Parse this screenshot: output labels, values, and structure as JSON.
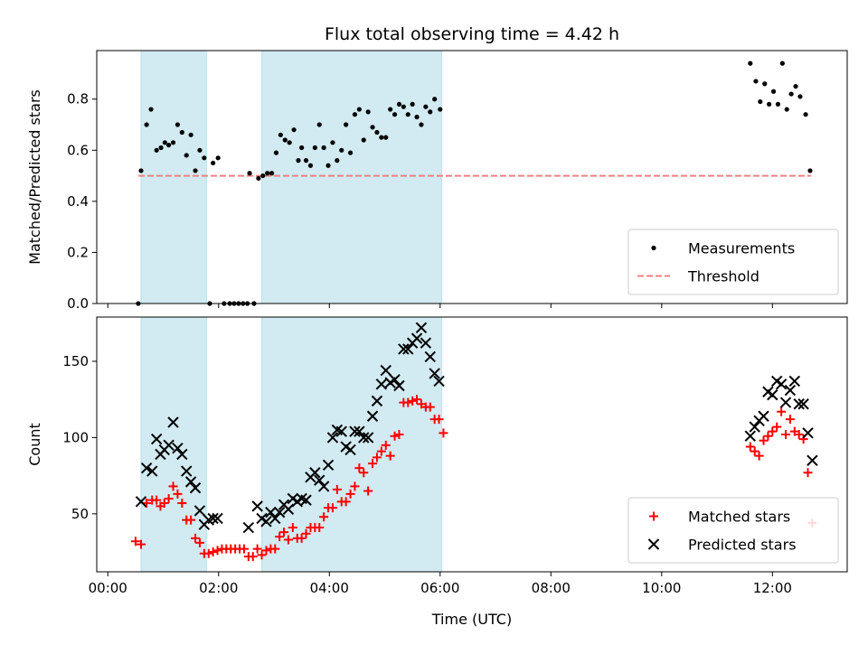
{
  "chart_data": [
    {
      "type": "scatter",
      "title": "Flux total observing time = 4.42 h",
      "xlabel": "",
      "ylabel": "Matched/Predicted stars",
      "xlim": [
        -0.2,
        13.35
      ],
      "ylim": [
        0,
        0.99
      ],
      "yticks": [
        0.0,
        0.2,
        0.4,
        0.6,
        0.8
      ],
      "ytick_labels": [
        "0.0",
        "0.2",
        "0.4",
        "0.6",
        "0.8"
      ],
      "shaded_spans": [
        [
          0.6,
          1.78
        ],
        [
          2.78,
          6.03
        ]
      ],
      "shade_color": "#add8e6",
      "legend": "bottom-right",
      "threshold": {
        "name": "Threshold",
        "y": 0.5,
        "x": [
          0.55,
          12.7
        ],
        "color": "#f08080",
        "style": "dashed"
      },
      "series": [
        {
          "name": "Measurements",
          "marker": "dot",
          "color": "#000000",
          "points": [
            [
              0.55,
              0.0
            ],
            [
              0.6,
              0.52
            ],
            [
              0.7,
              0.7
            ],
            [
              0.78,
              0.76
            ],
            [
              0.88,
              0.6
            ],
            [
              0.96,
              0.61
            ],
            [
              1.03,
              0.63
            ],
            [
              1.1,
              0.62
            ],
            [
              1.18,
              0.63
            ],
            [
              1.26,
              0.7
            ],
            [
              1.34,
              0.67
            ],
            [
              1.42,
              0.58
            ],
            [
              1.5,
              0.66
            ],
            [
              1.58,
              0.52
            ],
            [
              1.66,
              0.6
            ],
            [
              1.74,
              0.57
            ],
            [
              1.84,
              0.0
            ],
            [
              1.9,
              0.55
            ],
            [
              1.99,
              0.57
            ],
            [
              2.1,
              0.0
            ],
            [
              2.2,
              0.0
            ],
            [
              2.28,
              0.0
            ],
            [
              2.36,
              0.0
            ],
            [
              2.44,
              0.0
            ],
            [
              2.52,
              0.0
            ],
            [
              2.56,
              0.51
            ],
            [
              2.64,
              0.0
            ],
            [
              2.72,
              0.49
            ],
            [
              2.8,
              0.5
            ],
            [
              2.88,
              0.51
            ],
            [
              2.96,
              0.51
            ],
            [
              3.04,
              0.59
            ],
            [
              3.12,
              0.66
            ],
            [
              3.2,
              0.64
            ],
            [
              3.28,
              0.63
            ],
            [
              3.36,
              0.68
            ],
            [
              3.44,
              0.56
            ],
            [
              3.5,
              0.61
            ],
            [
              3.58,
              0.56
            ],
            [
              3.66,
              0.54
            ],
            [
              3.74,
              0.61
            ],
            [
              3.82,
              0.7
            ],
            [
              3.9,
              0.61
            ],
            [
              3.98,
              0.54
            ],
            [
              4.06,
              0.63
            ],
            [
              4.14,
              0.56
            ],
            [
              4.22,
              0.6
            ],
            [
              4.3,
              0.7
            ],
            [
              4.38,
              0.59
            ],
            [
              4.46,
              0.74
            ],
            [
              4.54,
              0.76
            ],
            [
              4.62,
              0.64
            ],
            [
              4.7,
              0.75
            ],
            [
              4.78,
              0.69
            ],
            [
              4.86,
              0.67
            ],
            [
              4.94,
              0.65
            ],
            [
              5.02,
              0.65
            ],
            [
              5.1,
              0.76
            ],
            [
              5.18,
              0.74
            ],
            [
              5.26,
              0.78
            ],
            [
              5.34,
              0.77
            ],
            [
              5.42,
              0.74
            ],
            [
              5.5,
              0.78
            ],
            [
              5.58,
              0.73
            ],
            [
              5.66,
              0.7
            ],
            [
              5.74,
              0.77
            ],
            [
              5.82,
              0.75
            ],
            [
              5.9,
              0.8
            ],
            [
              6.0,
              0.76
            ],
            [
              11.6,
              0.94
            ],
            [
              11.7,
              0.87
            ],
            [
              11.78,
              0.79
            ],
            [
              11.86,
              0.86
            ],
            [
              11.94,
              0.78
            ],
            [
              12.02,
              0.83
            ],
            [
              12.1,
              0.78
            ],
            [
              12.18,
              0.94
            ],
            [
              12.26,
              0.76
            ],
            [
              12.34,
              0.82
            ],
            [
              12.42,
              0.85
            ],
            [
              12.5,
              0.81
            ],
            [
              12.6,
              0.74
            ],
            [
              12.68,
              0.52
            ]
          ]
        }
      ]
    },
    {
      "type": "scatter",
      "title": "",
      "xlabel": "Time (UTC)",
      "ylabel": "Count",
      "xlim": [
        -0.2,
        13.35
      ],
      "ylim": [
        12,
        179
      ],
      "xticks": [
        0,
        2,
        4,
        6,
        8,
        10,
        12
      ],
      "xtick_labels": [
        "00:00",
        "02:00",
        "04:00",
        "06:00",
        "08:00",
        "10:00",
        "12:00"
      ],
      "yticks": [
        50,
        100,
        150
      ],
      "ytick_labels": [
        "50",
        "100",
        "150"
      ],
      "shaded_spans": [
        [
          0.6,
          1.78
        ],
        [
          2.78,
          6.03
        ]
      ],
      "shade_color": "#add8e6",
      "legend": "bottom-right",
      "series": [
        {
          "name": "Matched stars",
          "marker": "plus",
          "color": "#ff0000",
          "points": [
            [
              0.5,
              32
            ],
            [
              0.6,
              30
            ],
            [
              0.7,
              57
            ],
            [
              0.8,
              59
            ],
            [
              0.88,
              59
            ],
            [
              0.95,
              55
            ],
            [
              1.02,
              57
            ],
            [
              1.1,
              60
            ],
            [
              1.18,
              68
            ],
            [
              1.26,
              63
            ],
            [
              1.34,
              57
            ],
            [
              1.42,
              46
            ],
            [
              1.5,
              46
            ],
            [
              1.58,
              34
            ],
            [
              1.66,
              31
            ],
            [
              1.74,
              24
            ],
            [
              1.82,
              24
            ],
            [
              1.9,
              25
            ],
            [
              1.98,
              26
            ],
            [
              2.06,
              27
            ],
            [
              2.14,
              27
            ],
            [
              2.22,
              27
            ],
            [
              2.3,
              27
            ],
            [
              2.38,
              27
            ],
            [
              2.46,
              27
            ],
            [
              2.54,
              22
            ],
            [
              2.62,
              22
            ],
            [
              2.7,
              27
            ],
            [
              2.78,
              23
            ],
            [
              2.86,
              26
            ],
            [
              2.94,
              27
            ],
            [
              3.02,
              27
            ],
            [
              3.1,
              35
            ],
            [
              3.18,
              38
            ],
            [
              3.26,
              33
            ],
            [
              3.34,
              41
            ],
            [
              3.42,
              34
            ],
            [
              3.5,
              34
            ],
            [
              3.58,
              37
            ],
            [
              3.66,
              41
            ],
            [
              3.74,
              41
            ],
            [
              3.82,
              41
            ],
            [
              3.9,
              48
            ],
            [
              3.98,
              54
            ],
            [
              4.06,
              54
            ],
            [
              4.14,
              66
            ],
            [
              4.22,
              58
            ],
            [
              4.3,
              58
            ],
            [
              4.38,
              63
            ],
            [
              4.46,
              68
            ],
            [
              4.54,
              80
            ],
            [
              4.62,
              77
            ],
            [
              4.7,
              65
            ],
            [
              4.78,
              83
            ],
            [
              4.86,
              87
            ],
            [
              4.94,
              91
            ],
            [
              5.02,
              95
            ],
            [
              5.1,
              88
            ],
            [
              5.18,
              101
            ],
            [
              5.26,
              102
            ],
            [
              5.34,
              123
            ],
            [
              5.42,
              123
            ],
            [
              5.5,
              124
            ],
            [
              5.58,
              125
            ],
            [
              5.66,
              122
            ],
            [
              5.74,
              120
            ],
            [
              5.82,
              120
            ],
            [
              5.9,
              112
            ],
            [
              5.98,
              112
            ],
            [
              6.06,
              103
            ],
            [
              11.6,
              94
            ],
            [
              11.68,
              91
            ],
            [
              11.76,
              88
            ],
            [
              11.84,
              98
            ],
            [
              11.92,
              101
            ],
            [
              12.0,
              104
            ],
            [
              12.08,
              107
            ],
            [
              12.16,
              117
            ],
            [
              12.24,
              102
            ],
            [
              12.32,
              112
            ],
            [
              12.4,
              104
            ],
            [
              12.48,
              102
            ],
            [
              12.56,
              99
            ],
            [
              12.64,
              77
            ],
            [
              12.72,
              44
            ]
          ]
        },
        {
          "name": "Predicted stars",
          "marker": "x",
          "color": "#000000",
          "points": [
            [
              0.6,
              58
            ],
            [
              0.7,
              80
            ],
            [
              0.8,
              78
            ],
            [
              0.88,
              99
            ],
            [
              0.95,
              89
            ],
            [
              1.02,
              92
            ],
            [
              1.1,
              95
            ],
            [
              1.18,
              110
            ],
            [
              1.26,
              93
            ],
            [
              1.34,
              89
            ],
            [
              1.42,
              78
            ],
            [
              1.5,
              71
            ],
            [
              1.58,
              67
            ],
            [
              1.66,
              52
            ],
            [
              1.74,
              43
            ],
            [
              1.82,
              46
            ],
            [
              1.9,
              47
            ],
            [
              1.98,
              47
            ],
            [
              2.54,
              41
            ],
            [
              2.7,
              55
            ],
            [
              2.78,
              47
            ],
            [
              2.86,
              45
            ],
            [
              2.94,
              51
            ],
            [
              3.02,
              47
            ],
            [
              3.1,
              51
            ],
            [
              3.18,
              56
            ],
            [
              3.26,
              53
            ],
            [
              3.34,
              60
            ],
            [
              3.42,
              58
            ],
            [
              3.5,
              60
            ],
            [
              3.58,
              59
            ],
            [
              3.66,
              74
            ],
            [
              3.74,
              77
            ],
            [
              3.82,
              72
            ],
            [
              3.9,
              68
            ],
            [
              3.98,
              82
            ],
            [
              4.06,
              100
            ],
            [
              4.14,
              105
            ],
            [
              4.22,
              104
            ],
            [
              4.3,
              94
            ],
            [
              4.38,
              92
            ],
            [
              4.46,
              104
            ],
            [
              4.54,
              104
            ],
            [
              4.62,
              100
            ],
            [
              4.7,
              100
            ],
            [
              4.78,
              114
            ],
            [
              4.86,
              124
            ],
            [
              4.94,
              135
            ],
            [
              5.02,
              144
            ],
            [
              5.1,
              136
            ],
            [
              5.18,
              138
            ],
            [
              5.26,
              134
            ],
            [
              5.34,
              158
            ],
            [
              5.42,
              158
            ],
            [
              5.5,
              162
            ],
            [
              5.58,
              165
            ],
            [
              5.66,
              172
            ],
            [
              5.74,
              162
            ],
            [
              5.82,
              153
            ],
            [
              5.9,
              142
            ],
            [
              5.98,
              137
            ],
            [
              11.6,
              101
            ],
            [
              11.68,
              107
            ],
            [
              11.76,
              111
            ],
            [
              11.84,
              114
            ],
            [
              11.92,
              130
            ],
            [
              12.0,
              128
            ],
            [
              12.08,
              137
            ],
            [
              12.16,
              135
            ],
            [
              12.24,
              123
            ],
            [
              12.32,
              131
            ],
            [
              12.4,
              137
            ],
            [
              12.48,
              122
            ],
            [
              12.56,
              122
            ],
            [
              12.64,
              103
            ],
            [
              12.72,
              85
            ]
          ]
        }
      ]
    }
  ]
}
